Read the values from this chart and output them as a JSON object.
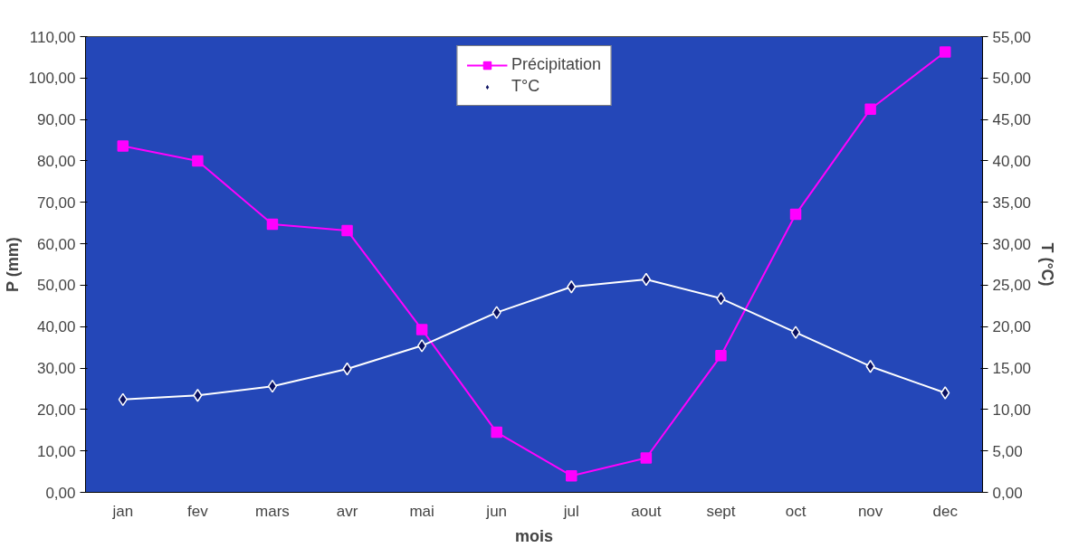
{
  "chart_data": {
    "type": "line",
    "xlabel": "mois",
    "ylabel": "P (mm)",
    "y2label": "T (°C)",
    "categories": [
      "jan",
      "fev",
      "mars",
      "avr",
      "mai",
      "jun",
      "jul",
      "aout",
      "sept",
      "oct",
      "nov",
      "dec"
    ],
    "series": [
      {
        "name": "Précipitation",
        "color": "#ff00ff",
        "marker": "square",
        "values": [
          83.6,
          80.0,
          64.7,
          63.2,
          39.3,
          14.5,
          4.0,
          8.3,
          33.0,
          67.1,
          92.5,
          106.3
        ]
      },
      {
        "name": "T°C",
        "color": "#ffffff",
        "marker": "diamond",
        "axis": "y2",
        "values": [
          11.2,
          11.7,
          12.8,
          14.9,
          17.7,
          21.7,
          24.8,
          25.7,
          23.4,
          19.3,
          15.2,
          12.0
        ]
      }
    ],
    "ylim": [
      0,
      110
    ],
    "yticks": [
      {
        "value": 0,
        "label": "0,00"
      },
      {
        "value": 10,
        "label": "10,00"
      },
      {
        "value": 20,
        "label": "20,00"
      },
      {
        "value": 30,
        "label": "30,00"
      },
      {
        "value": 40,
        "label": "40,00"
      },
      {
        "value": 50,
        "label": "50,00"
      },
      {
        "value": 60,
        "label": "60,00"
      },
      {
        "value": 70,
        "label": "70,00"
      },
      {
        "value": 80,
        "label": "80,00"
      },
      {
        "value": 90,
        "label": "90,00"
      },
      {
        "value": 100,
        "label": "100,00"
      },
      {
        "value": 110,
        "label": "110,00"
      }
    ],
    "y2lim": [
      0,
      55
    ],
    "y2ticks": [
      {
        "value": 0,
        "label": "0,00"
      },
      {
        "value": 5,
        "label": "5,00"
      },
      {
        "value": 10,
        "label": "10,00"
      },
      {
        "value": 15,
        "label": "15,00"
      },
      {
        "value": 20,
        "label": "20,00"
      },
      {
        "value": 25,
        "label": "25,00"
      },
      {
        "value": 30,
        "label": "30,00"
      },
      {
        "value": 35,
        "label": "35,00"
      },
      {
        "value": 40,
        "label": "40,00"
      },
      {
        "value": 45,
        "label": "45,00"
      },
      {
        "value": 50,
        "label": "50,00"
      },
      {
        "value": 55,
        "label": "55,00"
      }
    ],
    "grid": false,
    "legend": "top"
  }
}
